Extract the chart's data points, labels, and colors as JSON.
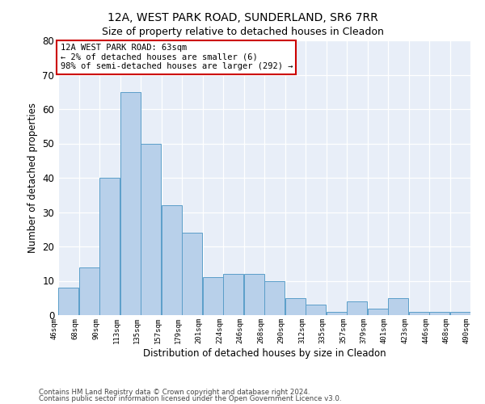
{
  "title": "12A, WEST PARK ROAD, SUNDERLAND, SR6 7RR",
  "subtitle": "Size of property relative to detached houses in Cleadon",
  "xlabel": "Distribution of detached houses by size in Cleadon",
  "ylabel": "Number of detached properties",
  "bar_values": [
    8,
    14,
    40,
    65,
    50,
    32,
    24,
    11,
    12,
    12,
    10,
    5,
    3,
    1,
    4,
    2,
    5,
    1,
    1,
    1
  ],
  "bar_labels": [
    "46sqm",
    "68sqm",
    "90sqm",
    "113sqm",
    "135sqm",
    "157sqm",
    "179sqm",
    "201sqm",
    "224sqm",
    "246sqm",
    "268sqm",
    "290sqm",
    "312sqm",
    "335sqm",
    "357sqm",
    "379sqm",
    "401sqm",
    "423sqm",
    "446sqm",
    "468sqm",
    "490sqm"
  ],
  "bar_color": "#b8d0ea",
  "bar_edge_color": "#5b9ec9",
  "annotation_text": "12A WEST PARK ROAD: 63sqm\n← 2% of detached houses are smaller (6)\n98% of semi-detached houses are larger (292) →",
  "annotation_box_color": "#ffffff",
  "annotation_box_edge": "#cc0000",
  "ylim": [
    0,
    80
  ],
  "yticks": [
    0,
    10,
    20,
    30,
    40,
    50,
    60,
    70,
    80
  ],
  "footer1": "Contains HM Land Registry data © Crown copyright and database right 2024.",
  "footer2": "Contains public sector information licensed under the Open Government Licence v3.0.",
  "bg_color": "#e8eef8",
  "fig_bg_color": "#ffffff",
  "title_fontsize": 10,
  "n_bars": 20,
  "bin_width": 1
}
